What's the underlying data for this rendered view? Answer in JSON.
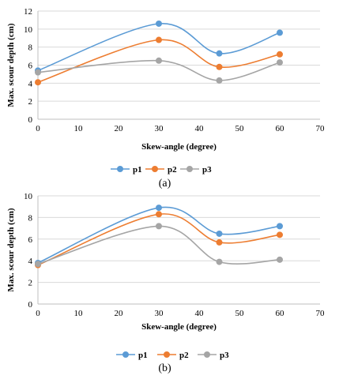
{
  "chart_data": [
    {
      "type": "line",
      "smooth": true,
      "caption": "(a)",
      "xlabel": "Skew-angle (degree)",
      "ylabel": "Max. scour depth (cm)",
      "xlim": [
        0,
        70
      ],
      "ylim": [
        0,
        12
      ],
      "xticks": [
        0,
        10,
        20,
        30,
        40,
        50,
        60,
        70
      ],
      "yticks": [
        0,
        2,
        4,
        6,
        8,
        10,
        12
      ],
      "grid": "horizontal",
      "legend": "bottom-center",
      "x": [
        0,
        30,
        45,
        60
      ],
      "series": [
        {
          "name": "p1",
          "color": "#5b9bd5",
          "values": [
            5.4,
            10.6,
            7.3,
            9.6
          ]
        },
        {
          "name": "p2",
          "color": "#ed7d31",
          "values": [
            4.1,
            8.8,
            5.8,
            7.2
          ]
        },
        {
          "name": "p3",
          "color": "#a5a5a5",
          "values": [
            5.2,
            6.5,
            4.3,
            6.3
          ]
        }
      ]
    },
    {
      "type": "line",
      "smooth": true,
      "caption": "(b)",
      "xlabel": "Skew-angle (degree)",
      "ylabel": "Max. scour depth (cm)",
      "xlim": [
        0,
        70
      ],
      "ylim": [
        0,
        10
      ],
      "xticks": [
        0,
        10,
        20,
        30,
        40,
        50,
        60,
        70
      ],
      "yticks": [
        0,
        2,
        4,
        6,
        8,
        10
      ],
      "grid": "horizontal",
      "legend": "bottom-center",
      "x": [
        0,
        30,
        45,
        60
      ],
      "series": [
        {
          "name": "p1",
          "color": "#5b9bd5",
          "values": [
            3.8,
            8.9,
            6.5,
            7.2
          ]
        },
        {
          "name": "p2",
          "color": "#ed7d31",
          "values": [
            3.6,
            8.3,
            5.7,
            6.4
          ]
        },
        {
          "name": "p3",
          "color": "#a5a5a5",
          "values": [
            3.7,
            7.2,
            3.9,
            4.1
          ]
        }
      ]
    }
  ]
}
